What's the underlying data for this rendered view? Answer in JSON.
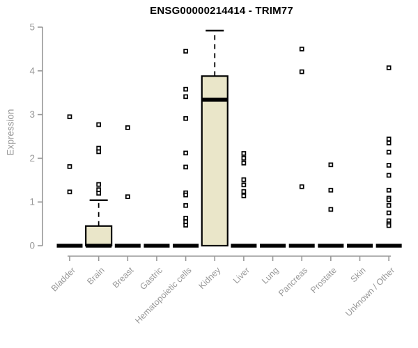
{
  "chart_data": {
    "type": "boxplot",
    "title": "ENSG00000214414 - TRIM77",
    "xlabel": "",
    "ylabel": "Expression",
    "ylim": [
      0,
      5
    ],
    "yticks": [
      0,
      1,
      2,
      3,
      4,
      5
    ],
    "grid": false,
    "legend": "none",
    "axis_color": "#989898",
    "box_fill_color": "#EAE6C9",
    "box_edge_color": "#000000",
    "outlier_marker": "open-square",
    "categories": [
      "Bladder",
      "Brain",
      "Breast",
      "Gastric",
      "Hematopoietic cells",
      "Kidney",
      "Liver",
      "Lung",
      "Pancreas",
      "Prostate",
      "Skin",
      "Unknown / Other"
    ],
    "boxes": [
      {
        "category": "Bladder",
        "q1": 0,
        "median": 0,
        "q3": 0,
        "whisker_low": 0,
        "whisker_high": 0,
        "outliers": [
          2.95,
          1.81,
          1.23
        ]
      },
      {
        "category": "Brain",
        "q1": 0,
        "median": 0,
        "q3": 0.45,
        "whisker_low": 0,
        "whisker_high": 1.04,
        "outliers": [
          2.77,
          2.23,
          2.15,
          1.4,
          1.28,
          1.2
        ]
      },
      {
        "category": "Breast",
        "q1": 0,
        "median": 0,
        "q3": 0,
        "whisker_low": 0,
        "whisker_high": 0,
        "outliers": [
          2.7,
          1.12
        ]
      },
      {
        "category": "Gastric",
        "q1": 0,
        "median": 0,
        "q3": 0,
        "whisker_low": 0,
        "whisker_high": 0,
        "outliers": []
      },
      {
        "category": "Hematopoietic cells",
        "q1": 0,
        "median": 0,
        "q3": 0,
        "whisker_low": 0,
        "whisker_high": 0,
        "outliers": [
          4.45,
          3.58,
          3.41,
          2.91,
          2.12,
          1.8,
          1.21,
          1.16,
          0.92,
          0.63,
          0.55,
          0.47
        ]
      },
      {
        "category": "Kidney",
        "q1": 0,
        "median": 3.34,
        "q3": 3.88,
        "whisker_low": 0,
        "whisker_high": 4.92,
        "outliers": []
      },
      {
        "category": "Liver",
        "q1": 0,
        "median": 0,
        "q3": 0,
        "whisker_low": 0,
        "whisker_high": 0,
        "outliers": [
          2.11,
          2.0,
          1.89,
          1.51,
          1.39,
          1.24,
          1.14
        ]
      },
      {
        "category": "Lung",
        "q1": 0,
        "median": 0,
        "q3": 0,
        "whisker_low": 0,
        "whisker_high": 0,
        "outliers": []
      },
      {
        "category": "Pancreas",
        "q1": 0,
        "median": 0,
        "q3": 0,
        "whisker_low": 0,
        "whisker_high": 0,
        "outliers": [
          4.5,
          3.98,
          1.35
        ]
      },
      {
        "category": "Prostate",
        "q1": 0,
        "median": 0,
        "q3": 0,
        "whisker_low": 0,
        "whisker_high": 0,
        "outliers": [
          1.85,
          1.27,
          0.83
        ]
      },
      {
        "category": "Skin",
        "q1": 0,
        "median": 0,
        "q3": 0,
        "whisker_low": 0,
        "whisker_high": 0,
        "outliers": []
      },
      {
        "category": "Unknown / Other",
        "q1": 0,
        "median": 0,
        "q3": 0,
        "whisker_low": 0,
        "whisker_high": 0,
        "outliers": [
          4.07,
          2.44,
          2.35,
          2.14,
          1.84,
          1.61,
          1.27,
          1.09,
          1.05,
          0.92,
          0.75,
          0.57,
          0.5,
          0.46
        ]
      }
    ]
  }
}
